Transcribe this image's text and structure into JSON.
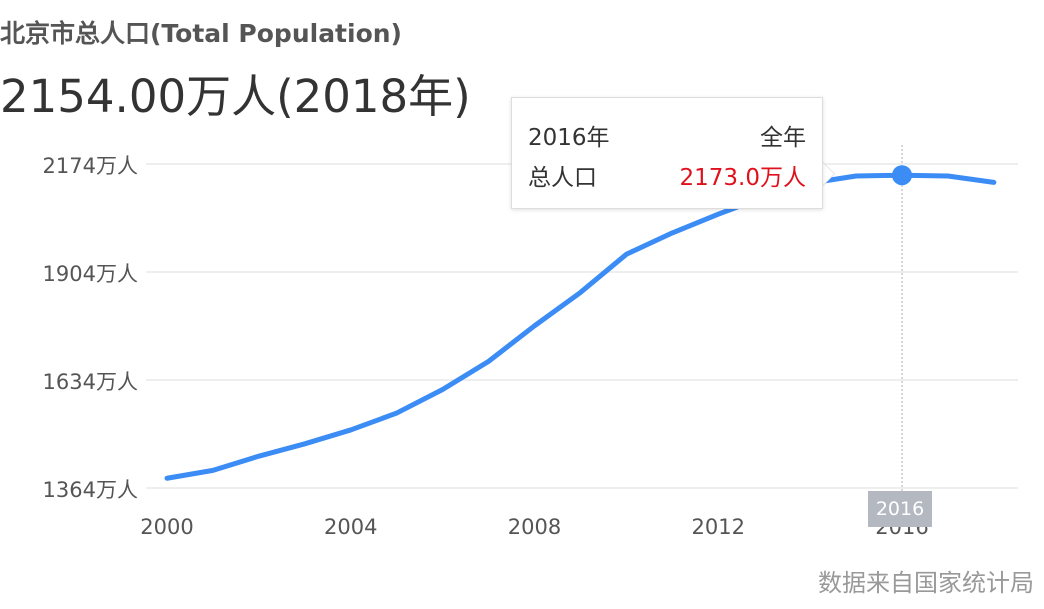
{
  "header": {
    "title": "北京市总人口(Total Population)",
    "value": "2154.00万人(2018年)"
  },
  "chart_data": {
    "type": "line",
    "title": "北京市总人口(Total Population)",
    "x": [
      2000,
      2001,
      2002,
      2003,
      2004,
      2005,
      2006,
      2007,
      2008,
      2009,
      2010,
      2011,
      2012,
      2013,
      2014,
      2015,
      2016,
      2017,
      2018
    ],
    "series": [
      {
        "name": "总人口",
        "values": [
          1364,
          1385,
          1423,
          1456,
          1493,
          1538,
          1601,
          1676,
          1771,
          1860,
          1962,
          2019,
          2069,
          2115,
          2152,
          2171,
          2173,
          2171,
          2154
        ]
      }
    ],
    "x_ticks": [
      "2000",
      "2004",
      "2008",
      "2012",
      "2016"
    ],
    "y_ticks": [
      "1364万人",
      "1634万人",
      "1904万人",
      "2174万人"
    ],
    "unit": "万人",
    "grid": true,
    "line_color": "#3b8cf5",
    "highlight": {
      "x": 2016,
      "label": "2016"
    }
  },
  "tooltip": {
    "year": "2016年",
    "period": "全年",
    "label": "总人口",
    "value": "2173.0万人"
  },
  "source": "数据来自国家统计局"
}
